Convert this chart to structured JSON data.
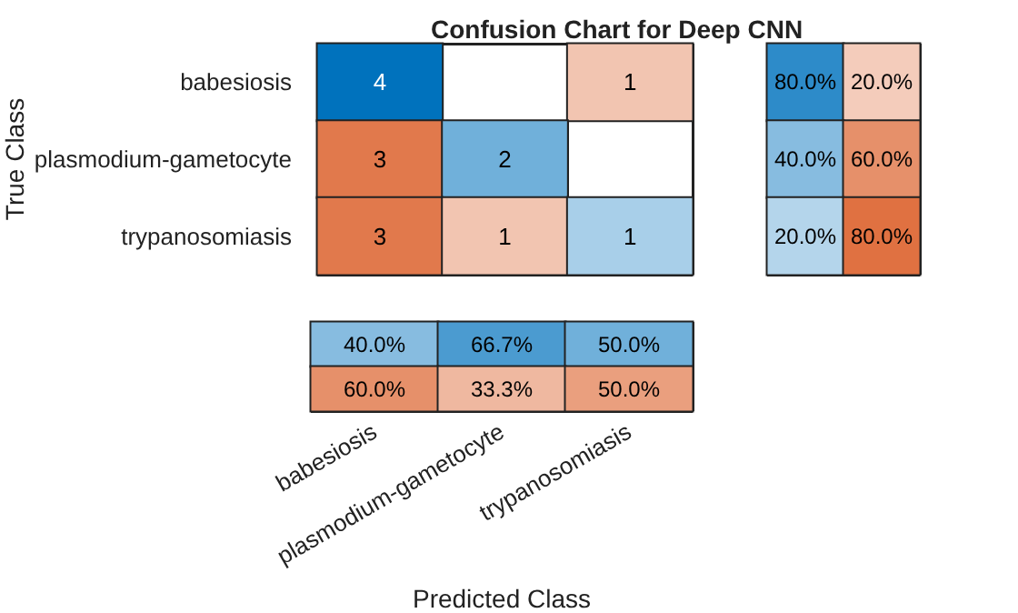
{
  "chart_data": [
    {
      "type": "heatmap",
      "title": "Confusion Chart for Deep CNN",
      "ylabel": "True Class",
      "categories": [
        null,
        null,
        null
      ],
      "y_categories": [
        "babesiosis",
        "plasmodium-gametocyte",
        "trypanosomiasis"
      ],
      "cells": [
        [
          4,
          null,
          1
        ],
        [
          3,
          2,
          null
        ],
        [
          3,
          1,
          1
        ]
      ],
      "data_labels": true,
      "tick_labels": "y"
    },
    {
      "type": "heatmap",
      "categories": [
        null,
        null
      ],
      "y_categories": [
        null,
        null,
        null
      ],
      "cells": [
        [
          80,
          20
        ],
        [
          40,
          60
        ],
        [
          20,
          80
        ]
      ],
      "cell_labels": [
        [
          "80.0%",
          "20.0%"
        ],
        [
          "40.0%",
          "60.0%"
        ],
        [
          "20.0%",
          "80.0%"
        ]
      ],
      "tick_labels": false
    },
    {
      "type": "heatmap",
      "xlabel": "Predicted Class",
      "categories": [
        "babesiosis",
        "plasmodium-gametocyte",
        "trypanosomiasis"
      ],
      "y_categories": [
        null,
        null
      ],
      "cells": [
        [
          40,
          66.7,
          50
        ],
        [
          60,
          33.3,
          50
        ]
      ],
      "cell_labels": [
        [
          "40.0%",
          "66.7%",
          "50.0%"
        ],
        [
          "60.0%",
          "33.3%",
          "50.0%"
        ]
      ],
      "tick_labels": "x"
    }
  ]
}
